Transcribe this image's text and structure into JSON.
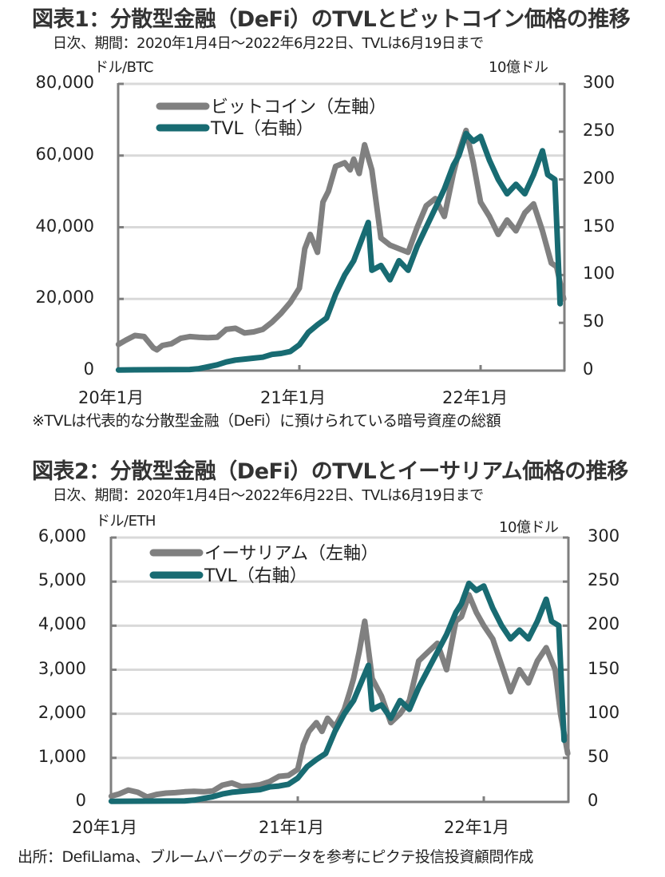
{
  "chart_data": [
    {
      "type": "line",
      "title": "図表1：分散型金融（DeFi）のTVLとビットコイン価格の推移",
      "subtitle": "日次、期間：2020年1月4日～2022年6月22日、TVLは6月19日まで",
      "ylabel_left": "ドル/BTC",
      "ylabel_right": "10億ドル",
      "ylim_left": [
        0,
        80000
      ],
      "ylim_right": [
        0,
        300
      ],
      "yticks_left": [
        "80,000",
        "60,000",
        "40,000",
        "20,000",
        "0"
      ],
      "yticks_left_values": [
        80000,
        60000,
        40000,
        20000,
        0
      ],
      "yticks_right": [
        "300",
        "250",
        "200",
        "150",
        "100",
        "50",
        "0"
      ],
      "yticks_right_values": [
        300,
        250,
        200,
        150,
        100,
        50,
        0
      ],
      "gridlines_left": [
        20000,
        40000,
        60000,
        80000
      ],
      "xticks": [
        "20年1月",
        "21年1月",
        "22年1月"
      ],
      "xrange": [
        "2020-01-04",
        "2022-06-22"
      ],
      "legend": [
        {
          "name": "ビットコイン（左軸）",
          "color": "#808080"
        },
        {
          "name": "TVL（右軸）",
          "color": "#186b72"
        }
      ],
      "legend_position": "top-left",
      "note": "※TVLは代表的な分散型金融（DeFi）に預けられている暗号資産の総額",
      "series": [
        {
          "name": "ビットコイン（左軸）",
          "axis": "left",
          "color": "#808080",
          "x": [
            2020.01,
            2020.05,
            2020.1,
            2020.15,
            2020.2,
            2020.22,
            2020.25,
            2020.3,
            2020.35,
            2020.4,
            2020.45,
            2020.5,
            2020.55,
            2020.6,
            2020.65,
            2020.7,
            2020.75,
            2020.8,
            2020.85,
            2020.9,
            2020.95,
            2021.0,
            2021.03,
            2021.06,
            2021.1,
            2021.13,
            2021.16,
            2021.2,
            2021.25,
            2021.28,
            2021.3,
            2021.33,
            2021.36,
            2021.4,
            2021.45,
            2021.5,
            2021.55,
            2021.6,
            2021.65,
            2021.7,
            2021.75,
            2021.8,
            2021.85,
            2021.88,
            2021.92,
            2021.96,
            2022.0,
            2022.05,
            2022.1,
            2022.15,
            2022.2,
            2022.25,
            2022.3,
            2022.35,
            2022.4,
            2022.43,
            2022.47
          ],
          "values": [
            7300,
            8500,
            9800,
            9500,
            6400,
            5800,
            7000,
            7500,
            9000,
            9500,
            9300,
            9200,
            9300,
            11500,
            11800,
            10500,
            10800,
            11500,
            13500,
            16000,
            19000,
            23000,
            34000,
            38000,
            33000,
            47000,
            50000,
            57000,
            58000,
            56000,
            59000,
            55000,
            63000,
            56000,
            37000,
            35000,
            34000,
            33000,
            40000,
            46000,
            48000,
            43000,
            55000,
            61000,
            67000,
            58000,
            47000,
            43000,
            38000,
            42000,
            39000,
            44000,
            46500,
            39000,
            30000,
            29000,
            20000
          ]
        },
        {
          "name": "TVL（右軸）",
          "axis": "right",
          "color": "#186b72",
          "x": [
            2020.01,
            2020.1,
            2020.2,
            2020.3,
            2020.4,
            2020.45,
            2020.5,
            2020.55,
            2020.6,
            2020.65,
            2020.7,
            2020.75,
            2020.8,
            2020.85,
            2020.9,
            2020.95,
            2021.0,
            2021.05,
            2021.1,
            2021.15,
            2021.2,
            2021.25,
            2021.3,
            2021.35,
            2021.38,
            2021.4,
            2021.45,
            2021.5,
            2021.55,
            2021.6,
            2021.65,
            2021.7,
            2021.75,
            2021.8,
            2021.85,
            2021.88,
            2021.92,
            2021.96,
            2022.0,
            2022.05,
            2022.1,
            2022.15,
            2022.2,
            2022.25,
            2022.3,
            2022.35,
            2022.38,
            2022.42,
            2022.45
          ],
          "values": [
            0.7,
            0.8,
            0.9,
            1,
            1.2,
            2,
            4,
            6,
            9,
            11,
            12,
            13,
            14,
            17,
            18,
            20,
            27,
            40,
            48,
            55,
            80,
            100,
            115,
            140,
            155,
            105,
            110,
            95,
            115,
            105,
            130,
            150,
            170,
            190,
            215,
            225,
            248,
            240,
            245,
            220,
            200,
            185,
            195,
            185,
            205,
            230,
            205,
            200,
            70
          ]
        }
      ]
    },
    {
      "type": "line",
      "title": "図表2：分散型金融（DeFi）のTVLとイーサリアム価格の推移",
      "subtitle": "日次、期間：2020年1月4日～2022年6月22日、TVLは6月19日まで",
      "ylabel_left": "ドル/ETH",
      "ylabel_right": "10億ドル",
      "ylim_left": [
        0,
        6000
      ],
      "ylim_right": [
        0,
        300
      ],
      "yticks_left": [
        "6,000",
        "5,000",
        "4,000",
        "3,000",
        "2,000",
        "1,000",
        "0"
      ],
      "yticks_left_values": [
        6000,
        5000,
        4000,
        3000,
        2000,
        1000,
        0
      ],
      "yticks_right": [
        "300",
        "250",
        "200",
        "150",
        "100",
        "50",
        "0"
      ],
      "yticks_right_values": [
        300,
        250,
        200,
        150,
        100,
        50,
        0
      ],
      "gridlines_left": [
        1000,
        2000,
        3000,
        4000,
        5000,
        6000
      ],
      "xticks": [
        "20年1月",
        "21年1月",
        "22年1月"
      ],
      "xrange": [
        "2020-01-04",
        "2022-06-22"
      ],
      "legend": [
        {
          "name": "イーサリアム（左軸）",
          "color": "#808080"
        },
        {
          "name": "TVL（右軸）",
          "color": "#186b72"
        }
      ],
      "legend_position": "top-left",
      "source": "出所：DefiLlama、ブルームバーグのデータを参考にピクテ投信投資顧問作成",
      "series": [
        {
          "name": "イーサリアム（左軸）",
          "axis": "left",
          "color": "#808080",
          "x": [
            2020.01,
            2020.05,
            2020.1,
            2020.15,
            2020.2,
            2020.25,
            2020.3,
            2020.35,
            2020.4,
            2020.45,
            2020.5,
            2020.55,
            2020.6,
            2020.65,
            2020.7,
            2020.75,
            2020.8,
            2020.85,
            2020.9,
            2020.95,
            2021.0,
            2021.03,
            2021.06,
            2021.1,
            2021.13,
            2021.16,
            2021.2,
            2021.25,
            2021.28,
            2021.3,
            2021.33,
            2021.36,
            2021.4,
            2021.45,
            2021.5,
            2021.55,
            2021.6,
            2021.65,
            2021.7,
            2021.75,
            2021.8,
            2021.85,
            2021.88,
            2021.92,
            2021.96,
            2022.0,
            2022.05,
            2022.1,
            2022.15,
            2022.2,
            2022.25,
            2022.3,
            2022.35,
            2022.4,
            2022.43,
            2022.47
          ],
          "values": [
            130,
            180,
            270,
            220,
            110,
            170,
            200,
            210,
            230,
            240,
            230,
            250,
            380,
            430,
            350,
            360,
            390,
            460,
            580,
            600,
            740,
            1300,
            1600,
            1800,
            1600,
            1900,
            1700,
            2100,
            2500,
            2800,
            3400,
            4100,
            2800,
            2400,
            1800,
            2000,
            2300,
            3200,
            3400,
            3600,
            3000,
            4100,
            4200,
            4700,
            4300,
            4000,
            3700,
            3100,
            2500,
            3000,
            2700,
            3200,
            3500,
            3000,
            2000,
            1100
          ]
        },
        {
          "name": "TVL（右軸）",
          "axis": "right",
          "color": "#186b72",
          "x": [
            2020.01,
            2020.1,
            2020.2,
            2020.3,
            2020.4,
            2020.45,
            2020.5,
            2020.55,
            2020.6,
            2020.65,
            2020.7,
            2020.75,
            2020.8,
            2020.85,
            2020.9,
            2020.95,
            2021.0,
            2021.05,
            2021.1,
            2021.15,
            2021.2,
            2021.25,
            2021.3,
            2021.35,
            2021.38,
            2021.4,
            2021.45,
            2021.5,
            2021.55,
            2021.6,
            2021.65,
            2021.7,
            2021.75,
            2021.8,
            2021.85,
            2021.88,
            2021.92,
            2021.96,
            2022.0,
            2022.05,
            2022.1,
            2022.15,
            2022.2,
            2022.25,
            2022.3,
            2022.35,
            2022.38,
            2022.42,
            2022.45
          ],
          "values": [
            0.7,
            0.8,
            0.9,
            1,
            1.2,
            2,
            4,
            6,
            9,
            11,
            12,
            13,
            14,
            17,
            18,
            20,
            27,
            40,
            48,
            55,
            80,
            100,
            115,
            140,
            155,
            105,
            110,
            95,
            115,
            105,
            130,
            150,
            170,
            190,
            215,
            225,
            248,
            240,
            245,
            220,
            200,
            185,
            195,
            185,
            205,
            230,
            205,
            200,
            70
          ]
        }
      ]
    }
  ]
}
